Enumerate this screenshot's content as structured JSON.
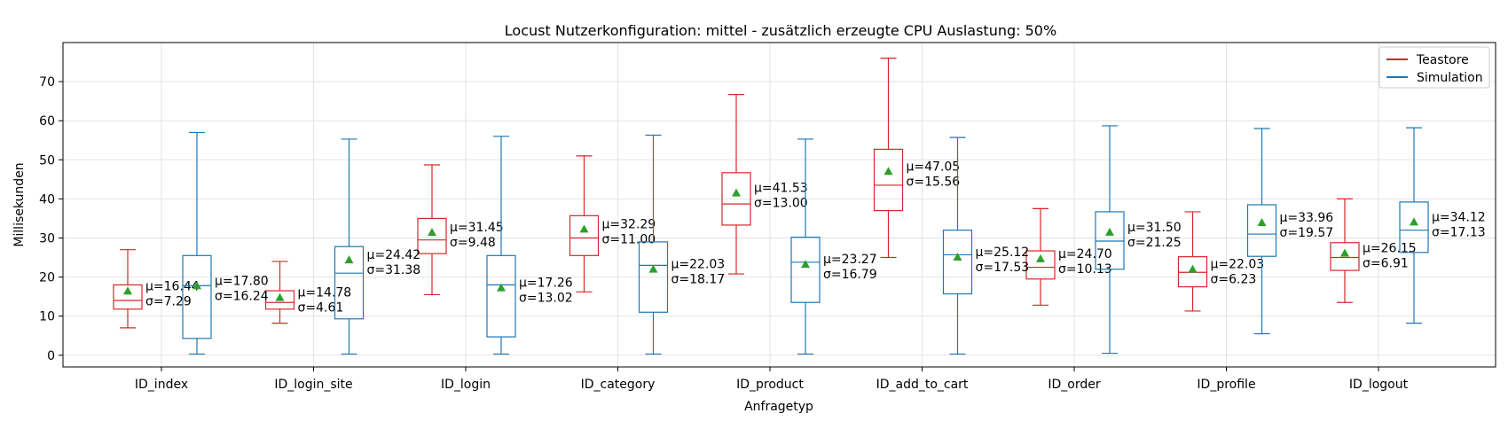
{
  "chart_data": {
    "type": "box",
    "title": "Locust Nutzerkonfiguration: mittel - zusätzlich erzeugte CPU Auslastung: 50%",
    "xlabel": "Anfragetyp",
    "ylabel": "Millisekunden",
    "ylim": [
      -3,
      80
    ],
    "yticks": [
      0,
      10,
      20,
      30,
      40,
      50,
      60,
      70
    ],
    "grid": true,
    "legend_position": "top-right",
    "categories": [
      "ID_index",
      "ID_login_site",
      "ID_login",
      "ID_category",
      "ID_product",
      "ID_add_to_cart",
      "ID_order",
      "ID_profile",
      "ID_logout"
    ],
    "series": [
      {
        "name": "Teastore",
        "color": "#d62728",
        "boxes": [
          {
            "whislo": 7.0,
            "q1": 11.8,
            "med": 14.0,
            "q3": 18.0,
            "whishi": 27.0,
            "mean": 16.44,
            "mean_label": "μ=16.44",
            "std_label": "σ=7.29"
          },
          {
            "whislo": 8.2,
            "q1": 11.8,
            "med": 13.5,
            "q3": 16.5,
            "whishi": 24.0,
            "mean": 14.78,
            "mean_label": "μ=14.78",
            "std_label": "σ=4.61"
          },
          {
            "whislo": 15.5,
            "q1": 26.0,
            "med": 29.5,
            "q3": 35.0,
            "whishi": 48.7,
            "mean": 31.45,
            "mean_label": "μ=31.45",
            "std_label": "σ=9.48"
          },
          {
            "whislo": 16.2,
            "q1": 25.5,
            "med": 30.0,
            "q3": 35.7,
            "whishi": 51.0,
            "mean": 32.29,
            "mean_label": "μ=32.29",
            "std_label": "σ=11.00"
          },
          {
            "whislo": 20.8,
            "q1": 33.3,
            "med": 38.7,
            "q3": 46.7,
            "whishi": 66.7,
            "mean": 41.53,
            "mean_label": "μ=41.53",
            "std_label": "σ=13.00"
          },
          {
            "whislo": 25.0,
            "q1": 37.0,
            "med": 43.5,
            "q3": 52.7,
            "whishi": 76.0,
            "mean": 47.05,
            "mean_label": "μ=47.05",
            "std_label": "σ=15.56"
          },
          {
            "whislo": 12.8,
            "q1": 19.5,
            "med": 22.5,
            "q3": 26.7,
            "whishi": 37.5,
            "mean": 24.7,
            "mean_label": "μ=24.70",
            "std_label": "σ=10.13"
          },
          {
            "whislo": 11.3,
            "q1": 17.5,
            "med": 21.2,
            "q3": 25.2,
            "whishi": 36.7,
            "mean": 22.03,
            "mean_label": "μ=22.03",
            "std_label": "σ=6.23"
          },
          {
            "whislo": 13.5,
            "q1": 21.7,
            "med": 25.0,
            "q3": 28.8,
            "whishi": 40.0,
            "mean": 26.15,
            "mean_label": "μ=26.15",
            "std_label": "σ=6.91"
          }
        ]
      },
      {
        "name": "Simulation",
        "color": "#1f77b4",
        "boxes": [
          {
            "whislo": 0.3,
            "q1": 4.3,
            "med": 17.8,
            "q3": 25.5,
            "whishi": 57.0,
            "mean": 17.8,
            "mean_label": "μ=17.80",
            "std_label": "σ=16.24"
          },
          {
            "whislo": 0.3,
            "q1": 9.3,
            "med": 21.0,
            "q3": 27.8,
            "whishi": 55.3,
            "mean": 24.42,
            "mean_label": "μ=24.42",
            "std_label": "σ=31.38"
          },
          {
            "whislo": 0.3,
            "q1": 4.7,
            "med": 18.0,
            "q3": 25.5,
            "whishi": 56.0,
            "mean": 17.26,
            "mean_label": "μ=17.26",
            "std_label": "σ=13.02"
          },
          {
            "whislo": 0.3,
            "q1": 11.0,
            "med": 23.0,
            "q3": 29.0,
            "whishi": 56.3,
            "mean": 22.03,
            "mean_label": "μ=22.03",
            "std_label": "σ=18.17"
          },
          {
            "whislo": 0.3,
            "q1": 13.5,
            "med": 23.8,
            "q3": 30.2,
            "whishi": 55.3,
            "mean": 23.27,
            "mean_label": "μ=23.27",
            "std_label": "σ=16.79"
          },
          {
            "whislo": 0.3,
            "q1": 15.7,
            "med": 25.7,
            "q3": 32.0,
            "whishi": 55.7,
            "mean": 25.12,
            "mean_label": "μ=25.12",
            "std_label": "σ=17.53"
          },
          {
            "whislo": 0.5,
            "q1": 22.0,
            "med": 29.2,
            "q3": 36.7,
            "whishi": 58.7,
            "mean": 31.5,
            "mean_label": "μ=31.50",
            "std_label": "σ=21.25"
          },
          {
            "whislo": 5.5,
            "q1": 25.3,
            "med": 31.0,
            "q3": 38.5,
            "whishi": 58.0,
            "mean": 33.96,
            "mean_label": "μ=33.96",
            "std_label": "σ=19.57"
          },
          {
            "whislo": 8.2,
            "q1": 26.3,
            "med": 32.0,
            "q3": 39.2,
            "whishi": 58.2,
            "mean": 34.12,
            "mean_label": "μ=34.12",
            "std_label": "σ=17.13"
          }
        ]
      }
    ],
    "mean_marker_color": "#2ca02c"
  }
}
